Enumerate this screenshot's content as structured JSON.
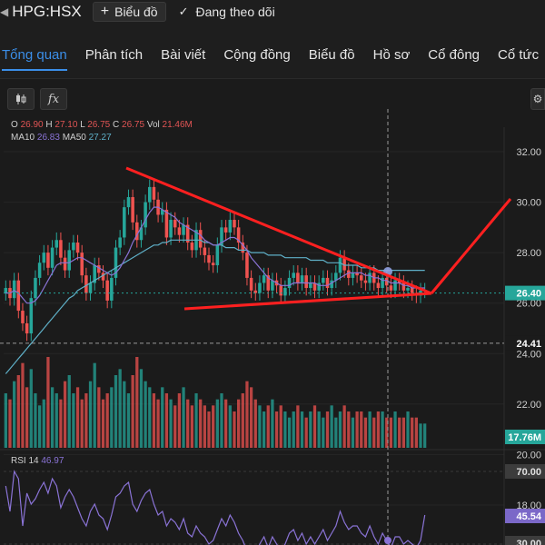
{
  "header": {
    "symbol": "HPG:HSX",
    "draw_button": "Biểu đồ",
    "follow_label": "Đang theo dõi"
  },
  "tabs": [
    {
      "label": "Tổng quan",
      "active": true
    },
    {
      "label": "Phân tích"
    },
    {
      "label": "Bài viết"
    },
    {
      "label": "Cộng đồng"
    },
    {
      "label": "Biểu đồ"
    },
    {
      "label": "Hồ sơ"
    },
    {
      "label": "Cổ đông"
    },
    {
      "label": "Cổ tức"
    }
  ],
  "toolbar": {
    "candle_icon": "candlestick-icon",
    "fx_label": "fx",
    "settings_icon": "gear-icon"
  },
  "ohlc": {
    "o_label": "O",
    "o": "26.90",
    "h_label": "H",
    "h": "27.10",
    "l_label": "L",
    "l": "26.75",
    "c_label": "C",
    "c": "26.75",
    "vol_label": "Vol",
    "vol": "21.46M"
  },
  "ma": {
    "ma10_label": "MA10",
    "ma10": "26.83",
    "ma50_label": "MA50",
    "ma50": "27.27"
  },
  "rsi": {
    "label": "RSI 14",
    "value": "46.97"
  },
  "colors": {
    "up": "#26a69a",
    "down": "#ef5350",
    "ma10": "#8a73d6",
    "ma50": "#5fb0c8",
    "drawing": "#ff2020",
    "price_tag": "#26a69a",
    "rsi_tag": "#7b68c8"
  },
  "chart_data": {
    "type": "candlestick",
    "price_axis": {
      "ticks": [
        "32.00",
        "30.00",
        "28.00",
        "26.00",
        "24.00",
        "22.00",
        "20.00",
        "18.00"
      ],
      "ylim": [
        18.5,
        33.0
      ]
    },
    "markers": {
      "last_price": "26.40",
      "crosshair_price": "24.41",
      "volume_tag": "17.76M",
      "rsi_upper": "70.00",
      "rsi_tag": "45.54",
      "rsi_lower": "30.00"
    },
    "closes": [
      26.6,
      26.2,
      26.9,
      25.7,
      25.2,
      24.8,
      26.2,
      27.0,
      27.6,
      28.0,
      27.4,
      28.2,
      28.5,
      27.8,
      27.3,
      28.1,
      28.4,
      28.0,
      27.1,
      26.4,
      26.8,
      27.5,
      27.2,
      26.9,
      26.1,
      27.0,
      28.2,
      28.6,
      29.8,
      30.2,
      29.2,
      28.5,
      29.0,
      30.0,
      30.6,
      30.1,
      29.5,
      29.7,
      28.6,
      29.3,
      29.0,
      28.7,
      29.1,
      28.4,
      28.1,
      28.9,
      28.2,
      27.9,
      27.6,
      27.5,
      28.3,
      29.0,
      28.8,
      29.3,
      29.0,
      28.4,
      28.0,
      27.0,
      26.5,
      26.4,
      26.8,
      27.1,
      26.5,
      26.9,
      26.7,
      26.3,
      26.6,
      27.0,
      27.2,
      26.8,
      27.1,
      26.6,
      26.8,
      26.5,
      26.8,
      27.0,
      26.6,
      26.9,
      27.2,
      27.8,
      27.3,
      27.0,
      27.2,
      27.1,
      26.9,
      26.8,
      27.2,
      26.8,
      26.6,
      27.0,
      26.7,
      26.5,
      26.9,
      26.8,
      26.5,
      26.6,
      26.4,
      26.3,
      26.5,
      26.5
    ],
    "volumes": [
      9,
      8,
      11,
      12,
      14,
      10,
      13,
      9,
      7,
      8,
      15,
      10,
      9,
      8,
      11,
      12,
      9,
      10,
      8,
      9,
      11,
      14,
      10,
      8,
      9,
      10,
      12,
      13,
      11,
      9,
      12,
      15,
      13,
      11,
      10,
      9,
      8,
      10,
      9,
      8,
      7,
      9,
      10,
      8,
      7,
      9,
      8,
      7,
      6,
      7,
      8,
      9,
      8,
      7,
      6,
      8,
      9,
      11,
      10,
      8,
      7,
      6,
      7,
      8,
      6,
      7,
      6,
      5,
      6,
      7,
      6,
      5,
      6,
      7,
      6,
      5,
      6,
      7,
      5,
      6,
      7,
      6,
      5,
      6,
      6,
      5,
      6,
      5,
      6,
      6,
      5,
      5,
      6,
      5,
      5,
      6,
      5,
      5,
      4,
      4
    ],
    "ma10": [
      26.4,
      26.4,
      26.5,
      26.4,
      26.2,
      26.0,
      26.0,
      26.1,
      26.3,
      26.6,
      26.9,
      27.2,
      27.5,
      27.6,
      27.6,
      27.6,
      27.7,
      27.8,
      27.8,
      27.7,
      27.6,
      27.5,
      27.4,
      27.3,
      27.2,
      27.1,
      27.2,
      27.4,
      27.7,
      28.0,
      28.4,
      28.7,
      29.0,
      29.3,
      29.6,
      29.8,
      29.8,
      29.7,
      29.6,
      29.5,
      29.4,
      29.2,
      29.1,
      29.0,
      28.9,
      28.8,
      28.7,
      28.5,
      28.4,
      28.3,
      28.3,
      28.4,
      28.5,
      28.6,
      28.6,
      28.5,
      28.3,
      28.1,
      27.8,
      27.6,
      27.4,
      27.2,
      27.0,
      26.9,
      26.8,
      26.7,
      26.7,
      26.7,
      26.8,
      26.8,
      26.8,
      26.8,
      26.8,
      26.8,
      26.7,
      26.7,
      26.7,
      26.8,
      26.9,
      27.0,
      27.1,
      27.2,
      27.2,
      27.2,
      27.2,
      27.1,
      27.1,
      27.0,
      27.0,
      26.9,
      26.9,
      26.8,
      26.8,
      26.8,
      26.7,
      26.7,
      26.6,
      26.6,
      26.6,
      26.6
    ],
    "ma50": [
      23.2,
      23.4,
      23.6,
      23.8,
      24.0,
      24.2,
      24.4,
      24.6,
      24.8,
      25.0,
      25.2,
      25.4,
      25.6,
      25.8,
      26.0,
      26.2,
      26.3,
      26.5,
      26.6,
      26.7,
      26.8,
      26.9,
      27.0,
      27.1,
      27.2,
      27.3,
      27.4,
      27.5,
      27.6,
      27.7,
      27.8,
      27.9,
      28.0,
      28.1,
      28.2,
      28.3,
      28.3,
      28.4,
      28.4,
      28.5,
      28.5,
      28.5,
      28.5,
      28.5,
      28.5,
      28.5,
      28.5,
      28.4,
      28.4,
      28.3,
      28.3,
      28.3,
      28.2,
      28.2,
      28.2,
      28.1,
      28.1,
      28.1,
      28.0,
      28.0,
      28.0,
      28.0,
      27.9,
      27.9,
      27.9,
      27.9,
      27.8,
      27.8,
      27.8,
      27.8,
      27.8,
      27.8,
      27.7,
      27.7,
      27.7,
      27.7,
      27.6,
      27.6,
      27.6,
      27.6,
      27.5,
      27.5,
      27.5,
      27.5,
      27.4,
      27.4,
      27.4,
      27.4,
      27.3,
      27.3,
      27.3,
      27.3,
      27.3,
      27.3,
      27.3,
      27.3,
      27.3,
      27.3,
      27.3,
      27.3
    ],
    "rsi": [
      62,
      48,
      70,
      66,
      40,
      58,
      52,
      55,
      60,
      64,
      58,
      66,
      62,
      50,
      56,
      60,
      56,
      50,
      44,
      40,
      48,
      52,
      46,
      44,
      38,
      46,
      56,
      58,
      62,
      64,
      52,
      48,
      54,
      58,
      60,
      52,
      46,
      48,
      40,
      44,
      42,
      38,
      44,
      36,
      34,
      40,
      36,
      34,
      30,
      32,
      38,
      44,
      40,
      46,
      42,
      36,
      32,
      26,
      24,
      24,
      30,
      34,
      28,
      34,
      30,
      26,
      30,
      36,
      38,
      32,
      36,
      30,
      34,
      30,
      34,
      38,
      32,
      36,
      40,
      48,
      42,
      38,
      40,
      40,
      36,
      34,
      40,
      34,
      30,
      36,
      32,
      28,
      34,
      34,
      30,
      32,
      30,
      28,
      32,
      46
    ]
  }
}
